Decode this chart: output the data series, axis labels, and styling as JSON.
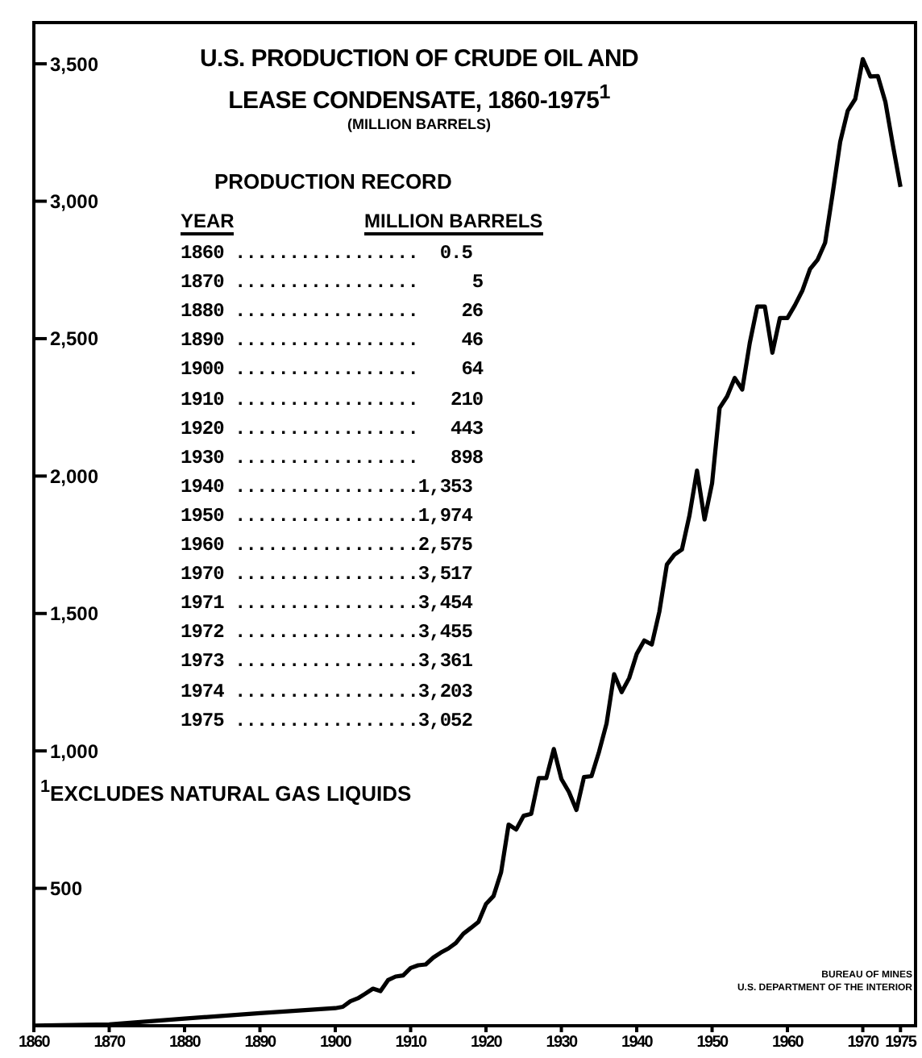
{
  "chart_data": {
    "type": "line",
    "title": "U.S. PRODUCTION OF CRUDE OIL AND LEASE CONDENSATE, 1860-1975$^{1}$",
    "subtitle": "(MILLION BARRELS)",
    "x": [
      1860,
      1870,
      1880,
      1890,
      1900,
      1901,
      1902,
      1903,
      1904,
      1905,
      1906,
      1907,
      1908,
      1909,
      1910,
      1911,
      1912,
      1913,
      1914,
      1915,
      1916,
      1917,
      1918,
      1919,
      1920,
      1921,
      1922,
      1923,
      1924,
      1925,
      1926,
      1927,
      1928,
      1929,
      1930,
      1931,
      1932,
      1933,
      1934,
      1935,
      1936,
      1937,
      1938,
      1939,
      1940,
      1941,
      1942,
      1943,
      1944,
      1945,
      1946,
      1947,
      1948,
      1949,
      1950,
      1951,
      1952,
      1953,
      1954,
      1955,
      1956,
      1957,
      1958,
      1959,
      1960,
      1961,
      1962,
      1963,
      1964,
      1965,
      1966,
      1967,
      1968,
      1969,
      1970,
      1971,
      1972,
      1973,
      1974,
      1975
    ],
    "series": [
      {
        "color": "#000000",
        "values": [
          0.5,
          5,
          26,
          46,
          64,
          69,
          89,
          100,
          117,
          135,
          126,
          166,
          179,
          183,
          210,
          220,
          223,
          248,
          266,
          281,
          301,
          335,
          356,
          378,
          443,
          472,
          558,
          732,
          714,
          764,
          771,
          901,
          901,
          1007,
          898,
          851,
          785,
          905,
          908,
          997,
          1100,
          1279,
          1214,
          1265,
          1353,
          1402,
          1387,
          1506,
          1678,
          1714,
          1733,
          1857,
          2020,
          1842,
          1974,
          2248,
          2290,
          2357,
          2315,
          2484,
          2617,
          2617,
          2449,
          2575,
          2575,
          2622,
          2676,
          2753,
          2787,
          2849,
          3028,
          3216,
          3329,
          3372,
          3517,
          3454,
          3455,
          3361,
          3203,
          3052
        ]
      }
    ],
    "xlim": [
      1860,
      1977
    ],
    "xticks": [
      1860,
      1870,
      1880,
      1890,
      1900,
      1910,
      1920,
      1930,
      1940,
      1950,
      1960,
      1970,
      1975
    ],
    "ylim": [
      0,
      3650
    ],
    "yticks": [
      500,
      {
        "value": 1000,
        "label": "1,000"
      },
      {
        "value": 1500,
        "label": "1,500"
      },
      {
        "value": 2000,
        "label": "2,000"
      },
      {
        "value": 2500,
        "label": "2,500"
      },
      {
        "value": 3000,
        "label": "3,000"
      },
      {
        "value": 3500,
        "label": "3,500"
      }
    ],
    "marker": "none",
    "line_style": "solid",
    "annotations": [
      "PRODUCTION RECORD",
      "YEAR",
      "MILLION BARRELS",
      "1860 .................  0.5",
      "1870 .................     5",
      "1880 .................    26",
      "1890 .................    46",
      "1900 .................    64",
      "1910 .................   210",
      "1920 .................   443",
      "1930 .................   898",
      "1940 .................1,353",
      "1950 .................1,974",
      "1960 .................2,575",
      "1970 .................3,517",
      "1971 .................3,454",
      "1972 .................3,455",
      "1973 .................3,361",
      "1974 .................3,203",
      "1975 .................3,052",
      "$^{1}$EXCLUDES NATURAL GAS LIQUIDS",
      "BUREAU OF MINES",
      "U.S. DEPARTMENT OF THE INTERIOR"
    ]
  }
}
